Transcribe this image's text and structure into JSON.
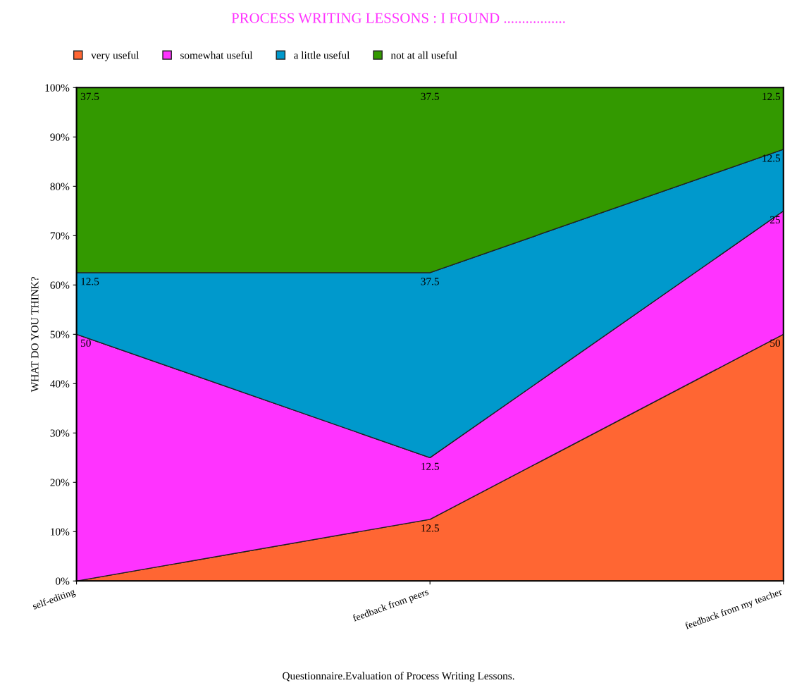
{
  "chart_data": {
    "type": "area",
    "stacked": true,
    "title": "PROCESS WRITING LESSONS : I FOUND .................",
    "ylabel": "WHAT DO YOU THINK?",
    "categories": [
      "self-editing",
      "feedback from peers",
      "feedback from my teacher"
    ],
    "series": [
      {
        "name": "very useful",
        "color": "#ff6633",
        "values": [
          0,
          12.5,
          50
        ],
        "value_labels": [
          null,
          "12.5",
          "50"
        ]
      },
      {
        "name": "somewhat useful",
        "color": "#ff33ff",
        "values": [
          50,
          12.5,
          25
        ],
        "value_labels": [
          "50",
          "12.5",
          "25"
        ]
      },
      {
        "name": "a little useful",
        "color": "#0099cc",
        "values": [
          12.5,
          37.5,
          12.5
        ],
        "value_labels": [
          "12.5",
          "37.5",
          "12.5"
        ]
      },
      {
        "name": "not at all useful",
        "color": "#339900",
        "values": [
          37.5,
          37.5,
          12.5
        ],
        "value_labels": [
          "37.5",
          "37.5",
          "12.5"
        ]
      }
    ],
    "ylim": [
      0,
      100
    ],
    "yticks": [
      {
        "value": 0,
        "label": "0%"
      },
      {
        "value": 10,
        "label": "10%"
      },
      {
        "value": 20,
        "label": "20%"
      },
      {
        "value": 30,
        "label": "30%"
      },
      {
        "value": 40,
        "label": "40%"
      },
      {
        "value": 50,
        "label": "50%"
      },
      {
        "value": 60,
        "label": "60%"
      },
      {
        "value": 70,
        "label": "70%"
      },
      {
        "value": 80,
        "label": "80%"
      },
      {
        "value": 90,
        "label": "90%"
      },
      {
        "value": 100,
        "label": "100%"
      }
    ],
    "grid": false,
    "legend": "top left",
    "annotations": [
      "Questionnaire.Evaluation of Process Writing Lessons."
    ]
  }
}
